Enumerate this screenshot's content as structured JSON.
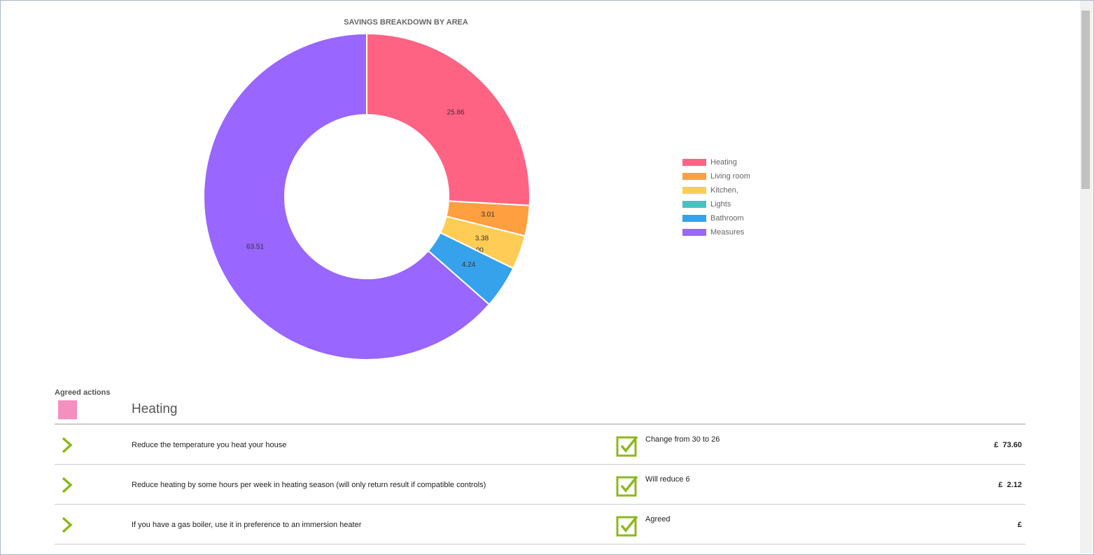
{
  "chart_data": {
    "type": "doughnut",
    "title": "SAVINGS BREAKDOWN BY AREA",
    "categories": [
      "Heating",
      "Living room",
      "Kitchen,",
      "Lights",
      "Bathroom",
      "Measures"
    ],
    "values": [
      25.86,
      3.01,
      3.38,
      0.0,
      4.24,
      63.51
    ],
    "value_labels": [
      "25.86",
      "3.01",
      "3.38",
      "0.00",
      "4.24",
      "63.51"
    ],
    "colors": [
      "#ff6384",
      "#ff9f40",
      "#ffcd56",
      "#4bc0c0",
      "#36a2eb",
      "#9966ff"
    ],
    "legend": "right"
  },
  "agreed_actions": {
    "label": "Agreed actions",
    "section": "Heating",
    "rows": [
      {
        "action": "Reduce the temperature you heat your house",
        "status": "Change from 30 to 26",
        "saving": "£  73.60"
      },
      {
        "action": "Reduce heating by some hours per week in heating season (will only return result if compatible controls)",
        "status": "Will reduce 6",
        "saving": "£  2.12"
      },
      {
        "action": "If you have a gas boiler, use it in preference to an immersion heater",
        "status": "Agreed",
        "saving": "£"
      }
    ]
  }
}
